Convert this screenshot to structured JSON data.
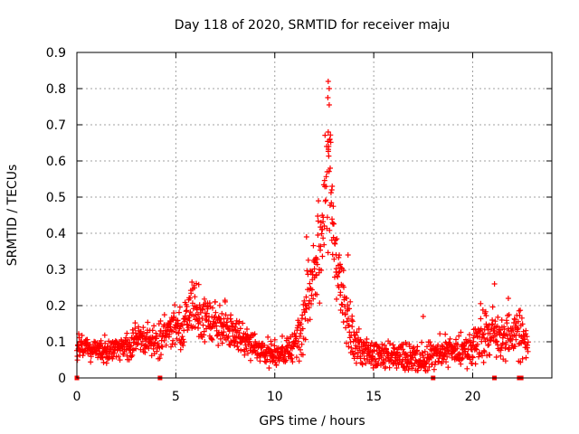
{
  "chart_data": {
    "type": "scatter",
    "title": "Day 118 of 2020, SRMTID for receiver maju",
    "xlabel": "GPS time / hours",
    "ylabel": "SRMTID / TECUs",
    "xlim": [
      0,
      24
    ],
    "ylim": [
      0,
      0.9
    ],
    "x_ticks": [
      0,
      5,
      10,
      15,
      20
    ],
    "x_tick_labels": [
      "0",
      "5",
      "10",
      "15",
      "20"
    ],
    "y_ticks": [
      0,
      0.1,
      0.2,
      0.3,
      0.4,
      0.5,
      0.6,
      0.7,
      0.8,
      0.9
    ],
    "y_tick_labels": [
      "0",
      "0.1",
      "0.2",
      "0.3",
      "0.4",
      "0.5",
      "0.6",
      "0.7",
      "0.8",
      "0.9"
    ],
    "grid": true,
    "marker": "+",
    "color": "#ff0000",
    "series_profile": {
      "name": "SRMTID",
      "hour": [
        0.0,
        0.5,
        1.0,
        1.5,
        2.0,
        2.5,
        2.8,
        3.0,
        3.5,
        4.0,
        4.3,
        4.6,
        5.0,
        5.5,
        5.8,
        6.0,
        6.5,
        7.0,
        7.5,
        8.0,
        8.5,
        9.0,
        9.5,
        10.0,
        10.5,
        11.0,
        11.3,
        11.6,
        12.0,
        12.3,
        12.6,
        12.75,
        12.9,
        13.1,
        13.4,
        13.7,
        14.0,
        14.5,
        15.0,
        15.5,
        16.0,
        16.5,
        17.0,
        17.5,
        18.0,
        18.5,
        19.0,
        19.5,
        20.0,
        20.5,
        21.0,
        21.5,
        22.0,
        22.3,
        22.8
      ],
      "typical_tecu": [
        0.085,
        0.08,
        0.075,
        0.075,
        0.08,
        0.085,
        0.1,
        0.11,
        0.105,
        0.1,
        0.12,
        0.13,
        0.14,
        0.16,
        0.19,
        0.18,
        0.16,
        0.15,
        0.14,
        0.12,
        0.11,
        0.085,
        0.07,
        0.065,
        0.07,
        0.085,
        0.13,
        0.2,
        0.28,
        0.38,
        0.5,
        0.56,
        0.46,
        0.32,
        0.24,
        0.16,
        0.1,
        0.075,
        0.065,
        0.06,
        0.055,
        0.06,
        0.055,
        0.05,
        0.06,
        0.075,
        0.08,
        0.075,
        0.08,
        0.11,
        0.13,
        0.11,
        0.12,
        0.15,
        0.09
      ],
      "spread_tecu": [
        0.02,
        0.02,
        0.02,
        0.02,
        0.02,
        0.022,
        0.03,
        0.025,
        0.025,
        0.025,
        0.03,
        0.035,
        0.04,
        0.045,
        0.05,
        0.045,
        0.045,
        0.04,
        0.04,
        0.035,
        0.03,
        0.025,
        0.025,
        0.025,
        0.025,
        0.03,
        0.05,
        0.07,
        0.09,
        0.1,
        0.12,
        0.12,
        0.1,
        0.08,
        0.06,
        0.05,
        0.04,
        0.025,
        0.025,
        0.025,
        0.025,
        0.03,
        0.03,
        0.025,
        0.025,
        0.025,
        0.025,
        0.025,
        0.03,
        0.045,
        0.05,
        0.04,
        0.04,
        0.05,
        0.025
      ],
      "peak_points": [
        [
          12.7,
          0.82
        ],
        [
          12.75,
          0.8
        ],
        [
          12.68,
          0.775
        ],
        [
          12.75,
          0.755
        ],
        [
          12.7,
          0.68
        ],
        [
          12.78,
          0.66
        ],
        [
          12.72,
          0.64
        ],
        [
          12.8,
          0.58
        ],
        [
          12.65,
          0.57
        ],
        [
          12.9,
          0.53
        ],
        [
          12.4,
          0.41
        ],
        [
          11.6,
          0.39
        ],
        [
          13.7,
          0.34
        ],
        [
          21.1,
          0.26
        ],
        [
          21.8,
          0.22
        ],
        [
          17.5,
          0.17
        ]
      ]
    },
    "data_gaps_hours": [
      0.0,
      4.2,
      18.0,
      21.1,
      22.35,
      22.45
    ]
  }
}
